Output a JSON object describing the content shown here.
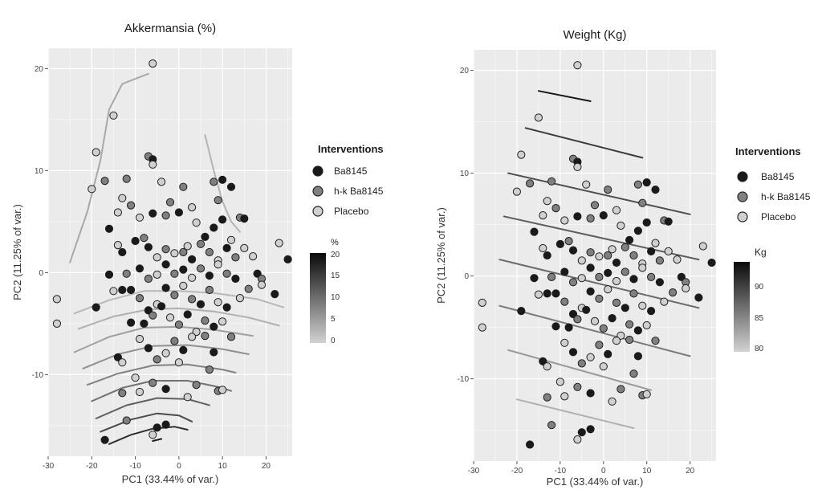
{
  "interventions": {
    "title": "Interventions",
    "entries": [
      {
        "label": "Ba8145",
        "color": "#1a1a1a"
      },
      {
        "label": "h-k Ba8145",
        "color": "#808080"
      },
      {
        "label": "Placebo",
        "color": "#d0d0d0"
      }
    ]
  },
  "points": [
    [
      -6,
      20.5,
      "p"
    ],
    [
      -15,
      15.4,
      "p"
    ],
    [
      -19,
      11.8,
      "p"
    ],
    [
      -20,
      8.2,
      "p"
    ],
    [
      -17,
      9,
      "h"
    ],
    [
      -12,
      9.2,
      "h"
    ],
    [
      -7,
      11.4,
      "h"
    ],
    [
      -6,
      11.1,
      "b"
    ],
    [
      -6,
      10.6,
      "p"
    ],
    [
      -16,
      4.3,
      "b"
    ],
    [
      -13,
      7.3,
      "p"
    ],
    [
      -14,
      5.9,
      "p"
    ],
    [
      -11,
      6.6,
      "h"
    ],
    [
      -9,
      5.4,
      "p"
    ],
    [
      -6,
      5.8,
      "b"
    ],
    [
      -3,
      5.6,
      "h"
    ],
    [
      0,
      5.9,
      "b"
    ],
    [
      3,
      6.4,
      "p"
    ],
    [
      -4,
      8.9,
      "p"
    ],
    [
      -2,
      6.9,
      "h"
    ],
    [
      1,
      8.4,
      "h"
    ],
    [
      4,
      4.9,
      "p"
    ],
    [
      8,
      4.4,
      "b"
    ],
    [
      10,
      5.2,
      "b"
    ],
    [
      10,
      9.1,
      "b"
    ],
    [
      8,
      8.9,
      "h"
    ],
    [
      9,
      7.1,
      "h"
    ],
    [
      12,
      8.4,
      "b"
    ],
    [
      14,
      5.4,
      "h"
    ],
    [
      15,
      5.3,
      "b"
    ],
    [
      -14,
      2.7,
      "p"
    ],
    [
      -13,
      2,
      "b"
    ],
    [
      -10,
      3.1,
      "b"
    ],
    [
      -8,
      3.4,
      "h"
    ],
    [
      -7,
      2.5,
      "b"
    ],
    [
      -5,
      1.5,
      "p"
    ],
    [
      -3,
      2.3,
      "h"
    ],
    [
      -1,
      1.9,
      "p"
    ],
    [
      1,
      2,
      "h"
    ],
    [
      2,
      2.6,
      "p"
    ],
    [
      3,
      1.3,
      "b"
    ],
    [
      5,
      2.8,
      "h"
    ],
    [
      6,
      3.5,
      "b"
    ],
    [
      7,
      2,
      "h"
    ],
    [
      9,
      1.2,
      "p"
    ],
    [
      11,
      2.4,
      "b"
    ],
    [
      12,
      3.2,
      "p"
    ],
    [
      13,
      1.5,
      "h"
    ],
    [
      15,
      2.4,
      "p"
    ],
    [
      17,
      1.6,
      "p"
    ],
    [
      -16,
      -0.2,
      "b"
    ],
    [
      -15,
      -1.8,
      "p"
    ],
    [
      -12,
      -0.1,
      "h"
    ],
    [
      -9,
      0.4,
      "b"
    ],
    [
      -7,
      -0.6,
      "h"
    ],
    [
      -5,
      -0.2,
      "p"
    ],
    [
      -3,
      0.8,
      "b"
    ],
    [
      -1,
      -0.1,
      "h"
    ],
    [
      1,
      0.3,
      "b"
    ],
    [
      3,
      -0.5,
      "p"
    ],
    [
      5,
      0.4,
      "h"
    ],
    [
      7,
      -0.3,
      "b"
    ],
    [
      9,
      0.8,
      "p"
    ],
    [
      11,
      -0.1,
      "h"
    ],
    [
      13,
      -0.6,
      "b"
    ],
    [
      18,
      -0.1,
      "b"
    ],
    [
      19,
      -0.6,
      "h"
    ],
    [
      23,
      2.9,
      "p"
    ],
    [
      25,
      1.3,
      "b"
    ],
    [
      -19,
      -3.4,
      "b"
    ],
    [
      -13,
      -1.7,
      "b"
    ],
    [
      -11,
      -1.7,
      "b"
    ],
    [
      -9,
      -2.5,
      "h"
    ],
    [
      -7,
      -3.7,
      "b"
    ],
    [
      -5,
      -3.1,
      "p"
    ],
    [
      -3,
      -1.5,
      "b"
    ],
    [
      -1,
      -2.2,
      "h"
    ],
    [
      1,
      -1.3,
      "p"
    ],
    [
      3,
      -2.6,
      "h"
    ],
    [
      5,
      -3.1,
      "b"
    ],
    [
      7,
      -1.7,
      "h"
    ],
    [
      9,
      -2.9,
      "p"
    ],
    [
      11,
      -3.4,
      "b"
    ],
    [
      14,
      -2.5,
      "p"
    ],
    [
      16,
      -1.6,
      "h"
    ],
    [
      19,
      -1.2,
      "p"
    ],
    [
      22,
      -2.1,
      "b"
    ],
    [
      -28,
      -2.6,
      "p"
    ],
    [
      -28,
      -5,
      "p"
    ],
    [
      -11,
      -4.9,
      "b"
    ],
    [
      -8,
      -5,
      "b"
    ],
    [
      -6,
      -4.2,
      "h"
    ],
    [
      -4,
      -3.3,
      "b"
    ],
    [
      -2,
      -4.4,
      "p"
    ],
    [
      0,
      -5.1,
      "h"
    ],
    [
      2,
      -4.1,
      "b"
    ],
    [
      4,
      -5.8,
      "p"
    ],
    [
      6,
      -4.7,
      "h"
    ],
    [
      8,
      -5.3,
      "b"
    ],
    [
      10,
      -4.8,
      "p"
    ],
    [
      12,
      -6.3,
      "h"
    ],
    [
      -14,
      -8.3,
      "b"
    ],
    [
      -13,
      -8.8,
      "p"
    ],
    [
      -9,
      -6.5,
      "p"
    ],
    [
      -7,
      -7.4,
      "b"
    ],
    [
      -5,
      -8.5,
      "h"
    ],
    [
      -3,
      -7.9,
      "p"
    ],
    [
      -1,
      -6.7,
      "h"
    ],
    [
      1,
      -7.6,
      "b"
    ],
    [
      3,
      -6.3,
      "p"
    ],
    [
      6,
      -6.2,
      "h"
    ],
    [
      8,
      -7.8,
      "b"
    ],
    [
      -10,
      -10.3,
      "p"
    ],
    [
      -9,
      -11.7,
      "p"
    ],
    [
      -6,
      -10.8,
      "h"
    ],
    [
      -3,
      -11.4,
      "b"
    ],
    [
      0,
      -8.8,
      "p"
    ],
    [
      2,
      -12.2,
      "p"
    ],
    [
      4,
      -11,
      "h"
    ],
    [
      7,
      -9.5,
      "h"
    ],
    [
      9,
      -11.6,
      "h"
    ],
    [
      10,
      -11.5,
      "p"
    ],
    [
      -13,
      -11.8,
      "h"
    ],
    [
      -12,
      -14.5,
      "h"
    ],
    [
      -5,
      -15.2,
      "b"
    ],
    [
      -3,
      -14.9,
      "b"
    ],
    [
      -6,
      -15.9,
      "p"
    ],
    [
      -17,
      -16.4,
      "b"
    ]
  ],
  "panels": [
    {
      "id": "akkermansia",
      "title": "Akkermansia (%)",
      "xlabel": "PC1 (33.44% of var.)",
      "ylabel": "PC2 (11.25% of var.)",
      "scale": {
        "title": "%",
        "ticks": [
          "20",
          "15",
          "10",
          "5",
          "0"
        ],
        "lo": "#d2d2d2",
        "hi": "#0a0a0a"
      }
    },
    {
      "id": "weight",
      "title": "Weight (Kg)",
      "xlabel": "PC1 (33.44% of var.)",
      "ylabel": "PC2 (11.25% of var.)",
      "scale": {
        "title": "Kg",
        "ticks": [
          "90",
          "85",
          "80"
        ],
        "lo": "#d2d2d2",
        "hi": "#0a0a0a"
      }
    }
  ],
  "chart_data": [
    {
      "type": "scatter",
      "title": "Akkermansia (%)",
      "xlabel": "PC1 (33.44% of var.)",
      "ylabel": "PC2 (11.25% of var.)",
      "xlim": [
        -30,
        26
      ],
      "ylim": [
        -18,
        22
      ],
      "xticks": [
        "-30",
        "-20",
        "-10",
        "0",
        "10",
        "20"
      ],
      "yticks": [
        "-10",
        "0",
        "10",
        "20"
      ],
      "grid": true,
      "legend": "right",
      "contours": [
        {
          "level": 12,
          "color": "#a8a8a8",
          "points": [
            [
              -25,
              1
            ],
            [
              -21,
              6
            ],
            [
              -18,
              11
            ],
            [
              -16,
              16
            ],
            [
              -13,
              18.5
            ],
            [
              -7,
              19.5
            ]
          ]
        },
        {
          "level": 10,
          "color": "#b4b4b4",
          "points": [
            [
              6,
              13.5
            ],
            [
              8,
              10
            ],
            [
              10,
              7
            ],
            [
              12,
              5
            ],
            [
              14,
              4
            ]
          ]
        },
        {
          "level": 1,
          "color": "#b8b8b8",
          "points": [
            [
              -24,
              -4
            ],
            [
              -16,
              -2.7
            ],
            [
              -8,
              -1.8
            ],
            [
              0,
              -1.8
            ],
            [
              8,
              -2
            ],
            [
              18,
              -2.6
            ],
            [
              24,
              -3.4
            ]
          ]
        },
        {
          "level": 2,
          "color": "#b0b0b0",
          "points": [
            [
              -23,
              -5.5
            ],
            [
              -15,
              -4.3
            ],
            [
              -7,
              -3.6
            ],
            [
              0,
              -3.5
            ],
            [
              8,
              -3.8
            ],
            [
              16,
              -4.4
            ],
            [
              23,
              -5.2
            ]
          ]
        },
        {
          "level": 3,
          "color": "#a0a0a0",
          "points": [
            [
              -24,
              -7.8
            ],
            [
              -16,
              -6.3
            ],
            [
              -8,
              -5.4
            ],
            [
              0,
              -5.3
            ],
            [
              8,
              -5.6
            ],
            [
              17,
              -6.2
            ]
          ]
        },
        {
          "level": 4,
          "color": "#909090",
          "points": [
            [
              -22,
              -9.4
            ],
            [
              -14,
              -8
            ],
            [
              -6,
              -7.2
            ],
            [
              2,
              -7.1
            ],
            [
              10,
              -7.5
            ],
            [
              16,
              -8
            ]
          ]
        },
        {
          "level": 5,
          "color": "#828282",
          "points": [
            [
              -21,
              -11
            ],
            [
              -14,
              -9.9
            ],
            [
              -6,
              -9.1
            ],
            [
              2,
              -9
            ],
            [
              10,
              -9.5
            ],
            [
              13,
              -9.8
            ]
          ]
        },
        {
          "level": 7,
          "color": "#727272",
          "points": [
            [
              -20,
              -12.6
            ],
            [
              -13,
              -11.3
            ],
            [
              -6,
              -10.6
            ],
            [
              2,
              -10.6
            ],
            [
              9,
              -11.2
            ],
            [
              12,
              -11.6
            ]
          ]
        },
        {
          "level": 9,
          "color": "#606060",
          "points": [
            [
              -19,
              -14.3
            ],
            [
              -12,
              -13
            ],
            [
              -5,
              -12.3
            ],
            [
              2,
              -12.4
            ],
            [
              7,
              -13
            ]
          ]
        },
        {
          "level": 11,
          "color": "#4a4a4a",
          "points": [
            [
              -18,
              -15.6
            ],
            [
              -11,
              -14.4
            ],
            [
              -5,
              -13.8
            ],
            [
              0,
              -14
            ],
            [
              3,
              -14.6
            ]
          ]
        },
        {
          "level": 14,
          "color": "#303030",
          "points": [
            [
              -16,
              -16.8
            ],
            [
              -11,
              -15.9
            ],
            [
              -6,
              -15.3
            ],
            [
              -1,
              -15.1
            ],
            [
              2,
              -15.4
            ]
          ]
        },
        {
          "level": 18,
          "color": "#1c1c1c",
          "points": [
            [
              -6,
              -16.5
            ],
            [
              -4,
              -16.3
            ]
          ]
        }
      ]
    },
    {
      "type": "scatter",
      "title": "Weight (Kg)",
      "xlabel": "PC1 (33.44% of var.)",
      "ylabel": "PC2 (11.25% of var.)",
      "xlim": [
        -30,
        26
      ],
      "ylim": [
        -18,
        22
      ],
      "xticks": [
        "-30",
        "-20",
        "-10",
        "0",
        "10",
        "20"
      ],
      "yticks": [
        "-10",
        "0",
        "10",
        "20"
      ],
      "grid": true,
      "legend": "right",
      "contours": [
        {
          "level": 94,
          "color": "#1a1a1a",
          "points": [
            [
              -15,
              18
            ],
            [
              -3,
              17
            ]
          ]
        },
        {
          "level": 92,
          "color": "#3a3a3a",
          "points": [
            [
              -18,
              14.4
            ],
            [
              9,
              11.5
            ]
          ]
        },
        {
          "level": 90,
          "color": "#4e4e4e",
          "points": [
            [
              -22,
              10
            ],
            [
              20,
              6
            ]
          ]
        },
        {
          "level": 89,
          "color": "#5e5e5e",
          "points": [
            [
              -23,
              5.8
            ],
            [
              22,
              1.6
            ]
          ]
        },
        {
          "level": 88,
          "color": "#6a6a6a",
          "points": [
            [
              -24,
              1.6
            ],
            [
              22,
              -3.1
            ]
          ]
        },
        {
          "level": 87,
          "color": "#7a7a7a",
          "points": [
            [
              -24,
              -2.9
            ],
            [
              20,
              -7.8
            ]
          ]
        },
        {
          "level": 85,
          "color": "#9a9a9a",
          "points": [
            [
              -22,
              -7.2
            ],
            [
              11,
              -11.1
            ]
          ]
        },
        {
          "level": 83,
          "color": "#b0b0b0",
          "points": [
            [
              -20,
              -12
            ],
            [
              7,
              -14.8
            ]
          ]
        }
      ]
    }
  ]
}
